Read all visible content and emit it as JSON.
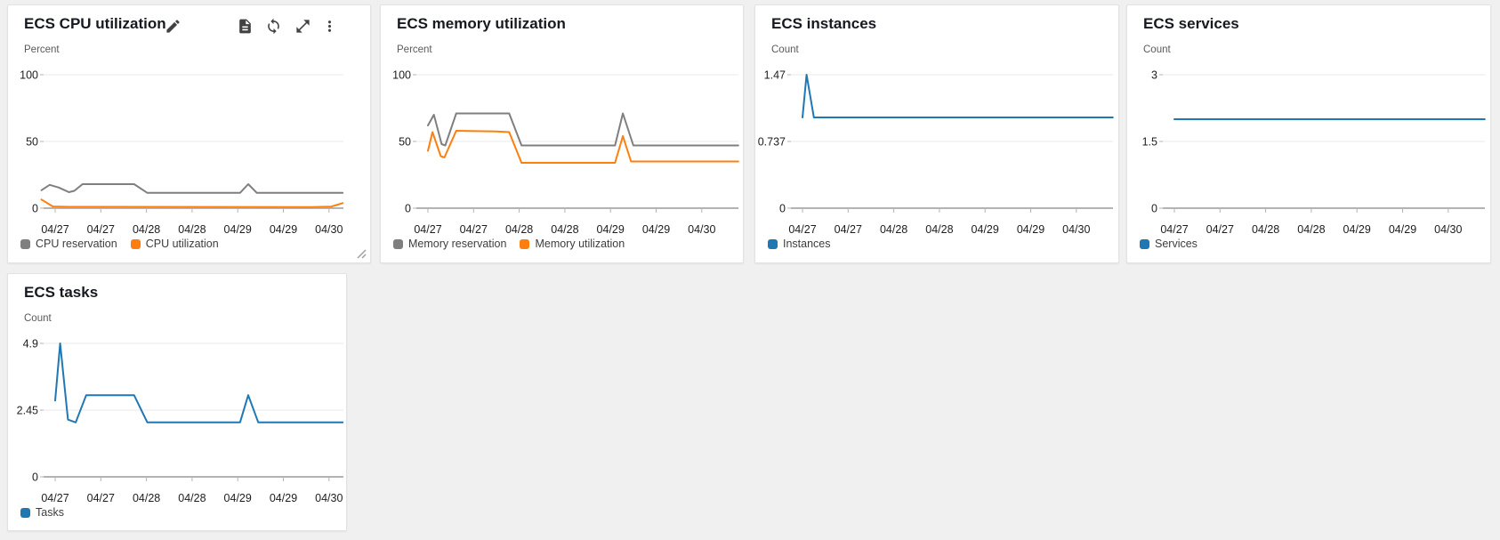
{
  "page": {
    "background": "#f0f0f1"
  },
  "colors": {
    "series_gray": "#7f7f7f",
    "series_orange": "#ff7f0e",
    "series_blue": "#1f77b4",
    "gridline": "#e8e8e8",
    "axis": "#b3b3b3"
  },
  "panels": [
    {
      "title": "ECS CPU utilization",
      "header_icons": [
        "edit-icon",
        "document-icon",
        "refresh-icon",
        "expand-icon",
        "kebab-menu-icon"
      ]
    },
    {
      "title": "ECS memory utilization",
      "header_icons": []
    },
    {
      "title": "ECS instances",
      "header_icons": []
    },
    {
      "title": "ECS services",
      "header_icons": []
    },
    {
      "title": "ECS tasks",
      "header_icons": []
    }
  ],
  "chart_data": [
    {
      "type": "line",
      "title": "ECS CPU utilization",
      "ylabel": "Percent",
      "ymax": 100,
      "ylim": [
        0,
        100
      ],
      "y_tick_labels": [
        "100",
        "50",
        "0"
      ],
      "x_tick_labels": [
        "04/27",
        "04/27",
        "04/28",
        "04/28",
        "04/29",
        "04/29",
        "04/30"
      ],
      "grid": true,
      "legend_position": "bottom",
      "series": [
        {
          "name": "CPU reservation",
          "color": "#7f7f7f",
          "points": [
            [
              -0.3,
              13.5
            ],
            [
              -0.12,
              17.5
            ],
            [
              0.08,
              15.5
            ],
            [
              0.3,
              12
            ],
            [
              0.42,
              13
            ],
            [
              0.6,
              18
            ],
            [
              1.73,
              18
            ],
            [
              2.02,
              11.5
            ],
            [
              4.05,
              11.5
            ],
            [
              4.23,
              18
            ],
            [
              4.42,
              11.5
            ],
            [
              6.3,
              11.5
            ]
          ]
        },
        {
          "name": "CPU utilization",
          "color": "#ff7f0e",
          "points": [
            [
              -0.3,
              6.5
            ],
            [
              -0.05,
              1.3
            ],
            [
              0.3,
              1
            ],
            [
              5.6,
              0.9
            ],
            [
              6.05,
              1.2
            ],
            [
              6.3,
              3.8
            ]
          ]
        }
      ]
    },
    {
      "type": "line",
      "title": "ECS memory utilization",
      "ylabel": "Percent",
      "ymax": 100,
      "ylim": [
        0,
        100
      ],
      "y_tick_labels": [
        "100",
        "50",
        "0"
      ],
      "x_tick_labels": [
        "04/27",
        "04/27",
        "04/28",
        "04/28",
        "04/29",
        "04/29",
        "04/30"
      ],
      "grid": true,
      "legend_position": "bottom",
      "series": [
        {
          "name": "Memory reservation",
          "color": "#7f7f7f",
          "points": [
            [
              0,
              62
            ],
            [
              0.13,
              70
            ],
            [
              0.3,
              48
            ],
            [
              0.38,
              47
            ],
            [
              0.62,
              71
            ],
            [
              1.78,
              71
            ],
            [
              2.05,
              47
            ],
            [
              4.1,
              47
            ],
            [
              4.27,
              71
            ],
            [
              4.5,
              47
            ],
            [
              6.8,
              47
            ]
          ]
        },
        {
          "name": "Memory utilization",
          "color": "#ff7f0e",
          "points": [
            [
              0,
              43
            ],
            [
              0.1,
              57
            ],
            [
              0.28,
              39
            ],
            [
              0.36,
              38
            ],
            [
              0.62,
              58
            ],
            [
              1.5,
              57.5
            ],
            [
              1.78,
              57
            ],
            [
              2.05,
              34
            ],
            [
              4.1,
              34
            ],
            [
              4.27,
              54
            ],
            [
              4.45,
              35
            ],
            [
              6.8,
              35
            ]
          ]
        }
      ]
    },
    {
      "type": "line",
      "title": "ECS instances",
      "ylabel": "Count",
      "ymax": 1.47,
      "ylim": [
        0,
        1.47
      ],
      "y_tick_labels": [
        "1.47",
        "0.737",
        "0"
      ],
      "x_tick_labels": [
        "04/27",
        "04/27",
        "04/28",
        "04/28",
        "04/29",
        "04/29",
        "04/30"
      ],
      "grid": true,
      "legend_position": "bottom",
      "series": [
        {
          "name": "Instances",
          "color": "#1f77b4",
          "points": [
            [
              0,
              1
            ],
            [
              0.09,
              1.47
            ],
            [
              0.25,
              1
            ],
            [
              6.8,
              1
            ]
          ]
        }
      ]
    },
    {
      "type": "line",
      "title": "ECS services",
      "ylabel": "Count",
      "ymax": 3,
      "ylim": [
        0,
        3
      ],
      "y_tick_labels": [
        "3",
        "1.5",
        "0"
      ],
      "x_tick_labels": [
        "04/27",
        "04/27",
        "04/28",
        "04/28",
        "04/29",
        "04/29",
        "04/30"
      ],
      "grid": true,
      "legend_position": "bottom",
      "series": [
        {
          "name": "Services",
          "color": "#1f77b4",
          "points": [
            [
              0,
              2
            ],
            [
              6.8,
              2
            ]
          ]
        }
      ]
    },
    {
      "type": "line",
      "title": "ECS tasks",
      "ylabel": "Count",
      "ymax": 4.9,
      "ylim": [
        0,
        4.9
      ],
      "y_tick_labels": [
        "4.9",
        "2.45",
        "0"
      ],
      "x_tick_labels": [
        "04/27",
        "04/27",
        "04/28",
        "04/28",
        "04/29",
        "04/29",
        "04/30"
      ],
      "grid": true,
      "legend_position": "bottom",
      "series": [
        {
          "name": "Tasks",
          "color": "#1f77b4",
          "points": [
            [
              0,
              2.8
            ],
            [
              0.11,
              4.9
            ],
            [
              0.28,
              2.1
            ],
            [
              0.45,
              2.0
            ],
            [
              0.68,
              3.0
            ],
            [
              1.73,
              3.0
            ],
            [
              2.02,
              2.0
            ],
            [
              4.05,
              2.0
            ],
            [
              4.23,
              3.0
            ],
            [
              4.45,
              2.0
            ],
            [
              6.3,
              2.0
            ]
          ]
        }
      ]
    }
  ]
}
